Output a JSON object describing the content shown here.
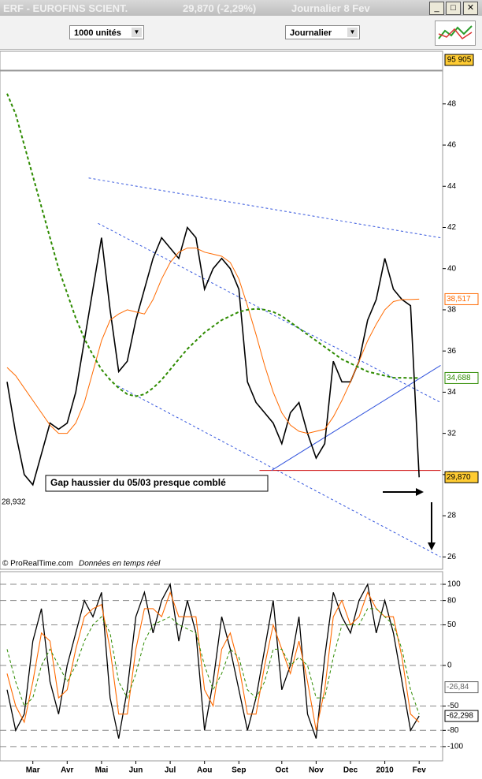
{
  "window": {
    "title": "ERF - EUROFINS SCIENT.",
    "quote": "29,870 (-2,29%)",
    "period": "Journalier  8 Fev"
  },
  "toolbar": {
    "quantity": "1000 unités",
    "interval": "Journalier"
  },
  "volume_label": "95 905",
  "footer": {
    "source": "© ProRealTime.com",
    "note": "Données en temps réel"
  },
  "chart_data": [
    {
      "type": "line",
      "annotation": "Gap haussier du 05/03 presque comblé",
      "ylim": [
        25.4,
        49.6
      ],
      "yticks": [
        26,
        28,
        30,
        32,
        34,
        36,
        38,
        40,
        42,
        44,
        46,
        48
      ],
      "series": [
        {
          "name": "Clôture",
          "color": "#000000",
          "width": 1.6,
          "dash": false,
          "values": [
            34.5,
            32,
            30,
            29.5,
            31,
            32.5,
            32.2,
            32.5,
            34,
            36.5,
            39,
            41.5,
            38,
            35,
            35.5,
            37.5,
            39,
            40.5,
            41.5,
            41,
            40.5,
            42,
            41.5,
            39,
            40,
            40.5,
            40,
            39,
            34.5,
            33.5,
            33,
            32.5,
            31.5,
            33,
            33.5,
            32,
            30.8,
            31.5,
            35.5,
            34.5,
            34.5,
            35.5,
            37.5,
            38.5,
            40.5,
            39,
            38.5,
            38.2,
            29.87
          ]
        },
        {
          "name": "MM orange",
          "color": "#ff6a00",
          "width": 1,
          "dash": false,
          "values": [
            35.2,
            34.8,
            34.2,
            33.6,
            33.0,
            32.4,
            32.0,
            32.0,
            32.5,
            33.5,
            35,
            36.5,
            37.5,
            37.8,
            38.0,
            37.9,
            37.8,
            38.5,
            39.5,
            40.3,
            40.8,
            41,
            41,
            40.8,
            40.7,
            40.6,
            40.3,
            39.5,
            38.2,
            36.8,
            35.3,
            34.0,
            33.0,
            32.4,
            32.1,
            32.0,
            32.1,
            32.2,
            32.8,
            33.6,
            34.5,
            35.5,
            36.5,
            37.3,
            38.0,
            38.4,
            38.5,
            38.5,
            38.517
          ]
        },
        {
          "name": "MM verte",
          "color": "#2e8b00",
          "width": 2,
          "dash": true,
          "values": [
            48.5,
            47.5,
            46,
            44.5,
            43,
            41.5,
            40,
            38.8,
            37.6,
            36.6,
            35.8,
            35.1,
            34.6,
            34.2,
            33.9,
            33.8,
            33.9,
            34.2,
            34.6,
            35.1,
            35.6,
            36.1,
            36.5,
            36.9,
            37.2,
            37.5,
            37.7,
            37.9,
            38.0,
            38.05,
            38.0,
            37.9,
            37.7,
            37.4,
            37.1,
            36.8,
            36.5,
            36.2,
            35.9,
            35.6,
            35.4,
            35.2,
            35.0,
            34.9,
            34.8,
            34.7,
            34.7,
            34.69,
            34.688
          ]
        }
      ],
      "trendlines": [
        {
          "x": [
            9.5,
            50.5
          ],
          "y": [
            44.4,
            41.5
          ],
          "color": "#3355dd",
          "dash": true
        },
        {
          "x": [
            10.6,
            50.5
          ],
          "y": [
            42.2,
            33.5
          ],
          "color": "#3355dd",
          "dash": true
        },
        {
          "x": [
            12.9,
            50.5
          ],
          "y": [
            34.3,
            26.0
          ],
          "color": "#3355dd",
          "dash": true
        },
        {
          "x": [
            29.4,
            50.5
          ],
          "y": [
            30.2,
            30.2
          ],
          "color": "#cc0000",
          "dash": false
        },
        {
          "x": [
            30.8,
            50.5
          ],
          "y": [
            30.2,
            35.3
          ],
          "color": "#3355dd",
          "dash": false
        }
      ],
      "markers": [
        {
          "value": 38.517,
          "label": "38,517",
          "color": "#ff6a00",
          "fill": "#ffffff",
          "side": "right"
        },
        {
          "value": 34.688,
          "label": "34,688",
          "color": "#2e8b00",
          "fill": "#ffffff",
          "side": "right"
        },
        {
          "value": 29.87,
          "label": "29,870",
          "color": "#000000",
          "fill": "#ffcc33",
          "side": "right"
        },
        {
          "value": 28.932,
          "label": "28,932",
          "color": "#000000",
          "fill": "#ffffff",
          "side": "left"
        }
      ]
    },
    {
      "type": "line",
      "categories": [
        null,
        null,
        null,
        "Mar",
        null,
        null,
        null,
        "Avr",
        null,
        null,
        null,
        "Mai",
        null,
        null,
        null,
        "Jun",
        null,
        null,
        null,
        "Jul",
        null,
        null,
        null,
        "Aou",
        null,
        null,
        null,
        "Sep",
        null,
        null,
        null,
        null,
        "Oct",
        null,
        null,
        null,
        "Nov",
        null,
        null,
        null,
        "Dec",
        null,
        null,
        null,
        "2010",
        null,
        null,
        null,
        "Fev"
      ],
      "ylim": [
        -117.6,
        115.6
      ],
      "yticks": [
        100,
        80,
        50,
        0,
        -50,
        -80,
        -100
      ],
      "grid": true,
      "series": [
        {
          "name": "Oscillateur",
          "color": "#000000",
          "width": 1.3,
          "dash": false,
          "values": [
            -30,
            -80,
            -60,
            30,
            70,
            -20,
            -60,
            0,
            40,
            80,
            60,
            90,
            -40,
            -90,
            -30,
            60,
            90,
            40,
            80,
            100,
            30,
            80,
            40,
            -80,
            -20,
            60,
            20,
            -30,
            -80,
            -40,
            20,
            80,
            -30,
            0,
            60,
            -60,
            -90,
            10,
            90,
            60,
            40,
            80,
            100,
            40,
            80,
            40,
            -20,
            -80,
            -62.298
          ]
        },
        {
          "name": "Signal",
          "color": "#ff6a00",
          "width": 1.1,
          "dash": false,
          "values": [
            -10,
            -50,
            -70,
            -20,
            40,
            30,
            -40,
            -30,
            20,
            60,
            70,
            75,
            20,
            -60,
            -60,
            20,
            70,
            70,
            60,
            90,
            60,
            60,
            60,
            -30,
            -50,
            20,
            40,
            0,
            -60,
            -60,
            0,
            50,
            20,
            -10,
            30,
            -20,
            -80,
            -30,
            60,
            80,
            50,
            60,
            90,
            70,
            60,
            60,
            10,
            -60,
            -70
          ]
        },
        {
          "name": "Lent",
          "color": "#2e8b00",
          "width": 1,
          "dash": true,
          "values": [
            20,
            -20,
            -50,
            -40,
            0,
            20,
            0,
            -20,
            0,
            30,
            50,
            60,
            40,
            -20,
            -40,
            -10,
            30,
            50,
            55,
            60,
            50,
            45,
            40,
            0,
            -30,
            -10,
            20,
            10,
            -30,
            -40,
            -20,
            20,
            20,
            0,
            10,
            0,
            -40,
            -40,
            10,
            50,
            50,
            50,
            70,
            70,
            60,
            50,
            20,
            -30,
            -60
          ]
        }
      ],
      "markers": [
        {
          "value": -26.84,
          "label": "-26,84",
          "color": "#666666",
          "fill": "#ffffff",
          "side": "right"
        },
        {
          "value": -62.298,
          "label": "-62,298",
          "color": "#000000",
          "fill": "#ffffff",
          "side": "right"
        }
      ]
    }
  ]
}
